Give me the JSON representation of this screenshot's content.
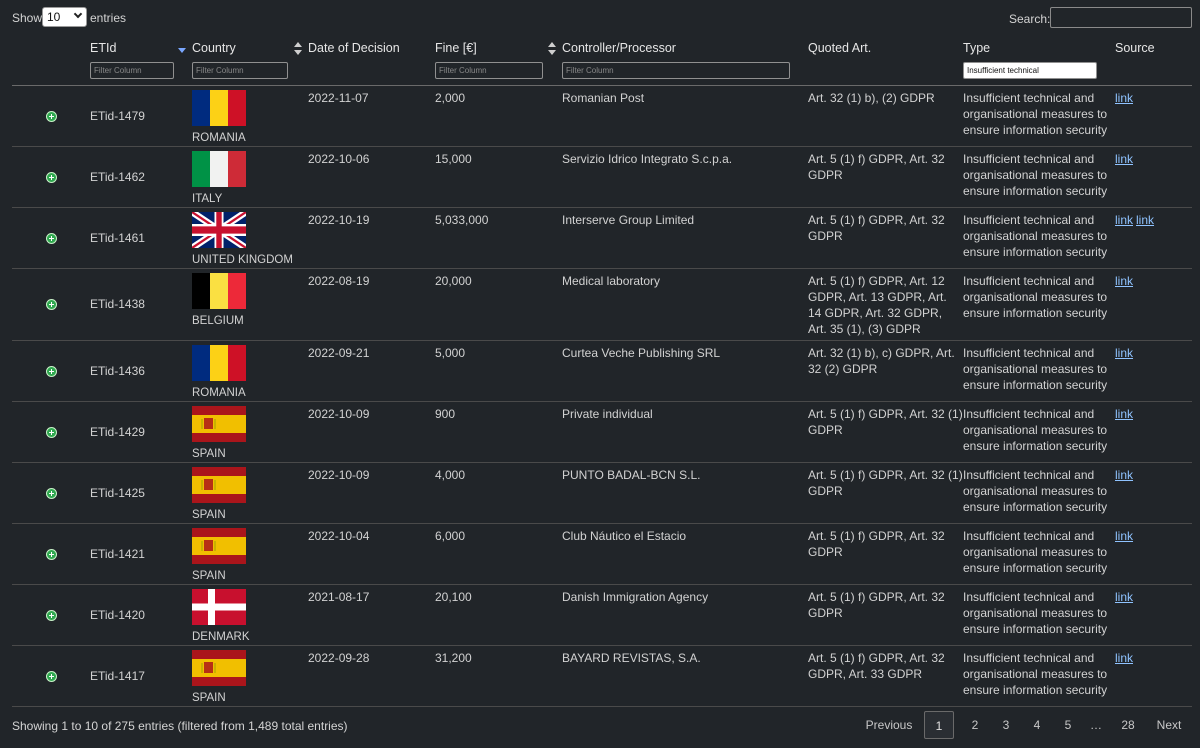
{
  "top": {
    "show_label": "Show",
    "entries_value": "10",
    "entries_label": "entries",
    "search_label": "Search:",
    "search_value": ""
  },
  "columns": [
    {
      "label": "",
      "filter": null
    },
    {
      "label": "ETId",
      "filter": "Filter Column"
    },
    {
      "label": "Country",
      "filter": "Filter Column"
    },
    {
      "label": "Date of Decision",
      "filter": null
    },
    {
      "label": "Fine [€]",
      "filter": "Filter Column"
    },
    {
      "label": "Controller/Processor",
      "filter": "Filter Column"
    },
    {
      "label": "Quoted Art.",
      "filter": null
    },
    {
      "label": "Type",
      "filter": "Insufficient technical"
    },
    {
      "label": "Source",
      "filter": null
    }
  ],
  "rows": [
    {
      "etid": "ETid-1479",
      "country": "ROMANIA",
      "flag": "romania",
      "date": "2022-11-07",
      "fine": "2,000",
      "controller": "Romanian Post",
      "quoted": "Art. 32 (1) b), (2) GDPR",
      "type": "Insufficient technical and organisational measures to ensure information security",
      "links": [
        "link"
      ]
    },
    {
      "etid": "ETid-1462",
      "country": "ITALY",
      "flag": "italy",
      "date": "2022-10-06",
      "fine": "15,000",
      "controller": "Servizio Idrico Integrato S.c.p.a.",
      "quoted": "Art. 5 (1) f) GDPR, Art. 32 GDPR",
      "type": "Insufficient technical and organisational measures to ensure information security",
      "links": [
        "link"
      ]
    },
    {
      "etid": "ETid-1461",
      "country": "UNITED KINGDOM",
      "flag": "uk",
      "date": "2022-10-19",
      "fine": "5,033,000",
      "controller": "Interserve Group Limited",
      "quoted": "Art. 5 (1) f) GDPR, Art. 32 GDPR",
      "type": "Insufficient technical and organisational measures to ensure information security",
      "links": [
        "link",
        "link"
      ]
    },
    {
      "etid": "ETid-1438",
      "country": "BELGIUM",
      "flag": "belgium",
      "date": "2022-08-19",
      "fine": "20,000",
      "controller": "Medical laboratory",
      "quoted": "Art. 5 (1) f) GDPR, Art. 12 GDPR, Art. 13 GDPR, Art. 14 GDPR, Art. 32 GDPR, Art. 35 (1), (3) GDPR",
      "type": "Insufficient technical and organisational measures to ensure information security",
      "links": [
        "link"
      ]
    },
    {
      "etid": "ETid-1436",
      "country": "ROMANIA",
      "flag": "romania",
      "date": "2022-09-21",
      "fine": "5,000",
      "controller": "Curtea Veche Publishing SRL",
      "quoted": "Art. 32 (1) b), c) GDPR, Art. 32 (2) GDPR",
      "type": "Insufficient technical and organisational measures to ensure information security",
      "links": [
        "link"
      ]
    },
    {
      "etid": "ETid-1429",
      "country": "SPAIN",
      "flag": "spain",
      "date": "2022-10-09",
      "fine": "900",
      "controller": "Private individual",
      "quoted": "Art. 5 (1) f) GDPR, Art. 32 (1) GDPR",
      "type": "Insufficient technical and organisational measures to ensure information security",
      "links": [
        "link"
      ]
    },
    {
      "etid": "ETid-1425",
      "country": "SPAIN",
      "flag": "spain",
      "date": "2022-10-09",
      "fine": "4,000",
      "controller": "PUNTO BADAL-BCN S.L.",
      "quoted": "Art. 5 (1) f) GDPR, Art. 32 (1) GDPR",
      "type": "Insufficient technical and organisational measures to ensure information security",
      "links": [
        "link"
      ]
    },
    {
      "etid": "ETid-1421",
      "country": "SPAIN",
      "flag": "spain",
      "date": "2022-10-04",
      "fine": "6,000",
      "controller": "Club Náutico el Estacio",
      "quoted": "Art. 5 (1) f) GDPR, Art. 32 GDPR",
      "type": "Insufficient technical and organisational measures to ensure information security",
      "links": [
        "link"
      ]
    },
    {
      "etid": "ETid-1420",
      "country": "DENMARK",
      "flag": "denmark",
      "date": "2021-08-17",
      "fine": "20,100",
      "controller": "Danish Immigration Agency",
      "quoted": "Art. 5 (1) f) GDPR, Art. 32 GDPR",
      "type": "Insufficient technical and organisational measures to ensure information security",
      "links": [
        "link"
      ]
    },
    {
      "etid": "ETid-1417",
      "country": "SPAIN",
      "flag": "spain",
      "date": "2022-09-28",
      "fine": "31,200",
      "controller": "BAYARD REVISTAS, S.A.",
      "quoted": "Art. 5 (1) f) GDPR, Art. 32 GDPR, Art. 33 GDPR",
      "type": "Insufficient technical and organisational measures to ensure information security",
      "links": [
        "link"
      ]
    }
  ],
  "footer": {
    "info": "Showing 1 to 10 of 275 entries (filtered from 1,489 total entries)",
    "pages": [
      {
        "label": "Previous",
        "current": false
      },
      {
        "label": "1",
        "current": true
      },
      {
        "label": "2",
        "current": false
      },
      {
        "label": "3",
        "current": false
      },
      {
        "label": "4",
        "current": false
      },
      {
        "label": "5",
        "current": false
      },
      {
        "label": "…",
        "current": false
      },
      {
        "label": "28",
        "current": false
      },
      {
        "label": "Next",
        "current": false
      }
    ]
  },
  "colors": {
    "background": "#212529",
    "link": "#8fc3ff",
    "expand": "#2fa84f"
  }
}
